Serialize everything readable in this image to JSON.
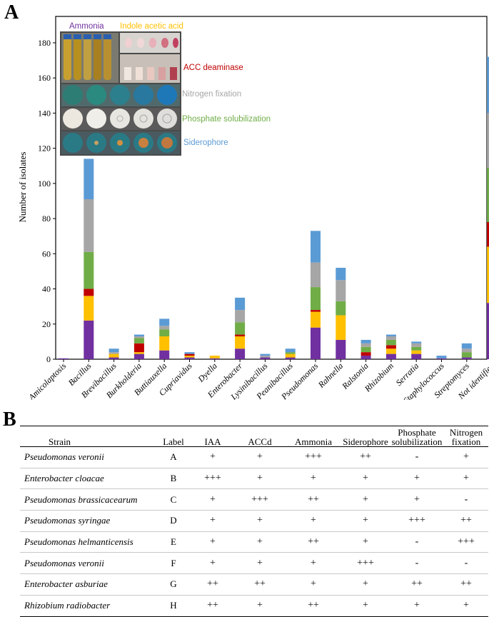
{
  "panel_a_letter": "A",
  "panel_b_letter": "B",
  "colors": {
    "Ammonia": "#7030a0",
    "Indole acetic acid": "#ffc000",
    "ACC deaminase": "#c00000",
    "Nitrogen fixation": "#a6a6a6",
    "Phosphate solubilization": "#70ad47",
    "Siderophore": "#5b9bd5"
  },
  "legend_labels": {
    "ammonia": "Ammonia",
    "iaa": "Indole acetic acid",
    "acc": "ACC deaminase",
    "nitrogen": "Nitrogen fixation",
    "phosphate": "Phosphate solubilization",
    "siderophore": "Siderophore"
  },
  "chart_data": {
    "type": "bar",
    "stacked": true,
    "title": "",
    "xlabel": "",
    "ylabel": "Number of isolates",
    "ylim": [
      0,
      195
    ],
    "yticks": [
      0,
      20,
      40,
      60,
      80,
      100,
      120,
      140,
      160,
      180
    ],
    "categories": [
      "Amicolaptosis",
      "Bacillus",
      "Brevibacillus",
      "Burkholderia",
      "Buttiauxella",
      "Cupriavidus",
      "Dyella",
      "Enterobacter",
      "Lysinibacillus",
      "Peanibacillus",
      "Pseudomonas",
      "Rahnella",
      "Ralstonia",
      "Rhizobium",
      "Serratia",
      "Staphylococcus",
      "Streptomyces",
      "Not identified"
    ],
    "series": [
      {
        "name": "Ammonia",
        "values": [
          0.5,
          22,
          1,
          3,
          5,
          1,
          0.5,
          6,
          1,
          1,
          18,
          11,
          2,
          3,
          3,
          0.5,
          1,
          32
        ]
      },
      {
        "name": "Indole acetic acid",
        "values": [
          0,
          14,
          2,
          1,
          8,
          1,
          1.5,
          7,
          0,
          2,
          9,
          14,
          0,
          3,
          2,
          0,
          0,
          32
        ]
      },
      {
        "name": "ACC deaminase",
        "values": [
          0,
          4,
          0,
          5,
          0,
          1,
          0,
          1,
          0,
          0,
          1,
          0,
          2,
          2,
          0,
          0,
          0,
          14
        ]
      },
      {
        "name": "Phosphate solubilization",
        "values": [
          0,
          21,
          0,
          3,
          4,
          0,
          0,
          7,
          0,
          1,
          13,
          8,
          3,
          3,
          2,
          0,
          3,
          31
        ]
      },
      {
        "name": "Nitrogen fixation",
        "values": [
          0,
          30,
          1,
          1,
          2,
          0,
          0,
          7,
          1,
          0,
          14,
          12,
          2,
          2,
          2,
          0,
          2,
          31
        ]
      },
      {
        "name": "Siderophore",
        "values": [
          0,
          23,
          2,
          1,
          4,
          1,
          0,
          7,
          1,
          2,
          18,
          7,
          2,
          1,
          1,
          1.5,
          3,
          32
        ]
      }
    ]
  },
  "table": {
    "headers": {
      "strain": "Strain",
      "label": "Label",
      "iaa": "IAA",
      "accd": "ACCd",
      "ammonia": "Ammonia",
      "siderophore": "Siderophore",
      "phosphate_1": "Phosphate",
      "phosphate_2": "solubilization",
      "nitrogen_1": "Nitrogen",
      "nitrogen_2": "fixation"
    },
    "rows": [
      {
        "strain": "Pseudomonas veronii",
        "label": "A",
        "iaa": "+",
        "accd": "+",
        "ammonia": "+++",
        "siderophore": "++",
        "phosphate": "-",
        "nitrogen": "+"
      },
      {
        "strain": "Enterobacter cloacae",
        "label": "B",
        "iaa": "+++",
        "accd": "+",
        "ammonia": "+",
        "siderophore": "+",
        "phosphate": "+",
        "nitrogen": "+"
      },
      {
        "strain": "Pseudomonas brassicacearum",
        "label": "C",
        "iaa": "+",
        "accd": "+++",
        "ammonia": "++",
        "siderophore": "+",
        "phosphate": "+",
        "nitrogen": "-"
      },
      {
        "strain": "Pseudomonas syringae",
        "label": "D",
        "iaa": "+",
        "accd": "+",
        "ammonia": "+",
        "siderophore": "+",
        "phosphate": "+++",
        "nitrogen": "++"
      },
      {
        "strain": "Pseudomonas helmanticensis",
        "label": "E",
        "iaa": "+",
        "accd": "+",
        "ammonia": "++",
        "siderophore": "+",
        "phosphate": "-",
        "nitrogen": "+++"
      },
      {
        "strain": "Pseudomonas veronii",
        "label": "F",
        "iaa": "+",
        "accd": "+",
        "ammonia": "+",
        "siderophore": "+++",
        "phosphate": "-",
        "nitrogen": "-"
      },
      {
        "strain": "Enterobacter asburiae",
        "label": "G",
        "iaa": "++",
        "accd": "++",
        "ammonia": "+",
        "siderophore": "+",
        "phosphate": "++",
        "nitrogen": "++"
      },
      {
        "strain": "Rhizobium radiobacter",
        "label": "H",
        "iaa": "++",
        "accd": "+",
        "ammonia": "++",
        "siderophore": "+",
        "phosphate": "+",
        "nitrogen": "+"
      }
    ]
  }
}
